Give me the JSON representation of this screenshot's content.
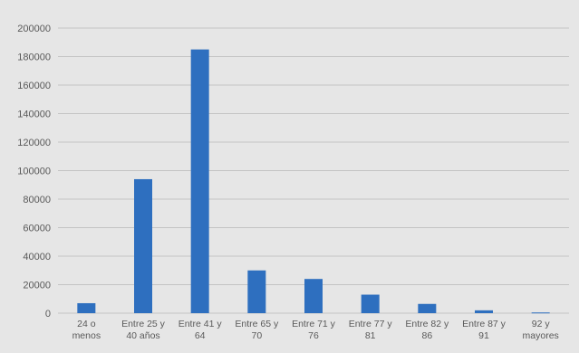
{
  "chart_data": {
    "type": "bar",
    "title": "",
    "xlabel": "",
    "ylabel": "",
    "ylim": [
      0,
      200000
    ],
    "yticks": [
      0,
      20000,
      40000,
      60000,
      80000,
      100000,
      120000,
      140000,
      160000,
      180000,
      200000
    ],
    "grid": true,
    "legend": "none",
    "bar_color": "#2e6fbf",
    "categories": [
      [
        "24 o",
        "menos"
      ],
      [
        "Entre 25 y",
        "40 años"
      ],
      [
        "Entre 41 y",
        "64"
      ],
      [
        "Entre 65 y",
        "70"
      ],
      [
        "Entre 71 y",
        "76"
      ],
      [
        "Entre 77 y",
        "81"
      ],
      [
        "Entre 82 y",
        "86"
      ],
      [
        "Entre 87 y",
        "91"
      ],
      [
        "92 y",
        "mayores"
      ]
    ],
    "values": [
      7000,
      94000,
      185000,
      30000,
      24000,
      13000,
      6500,
      2000,
      500
    ]
  }
}
